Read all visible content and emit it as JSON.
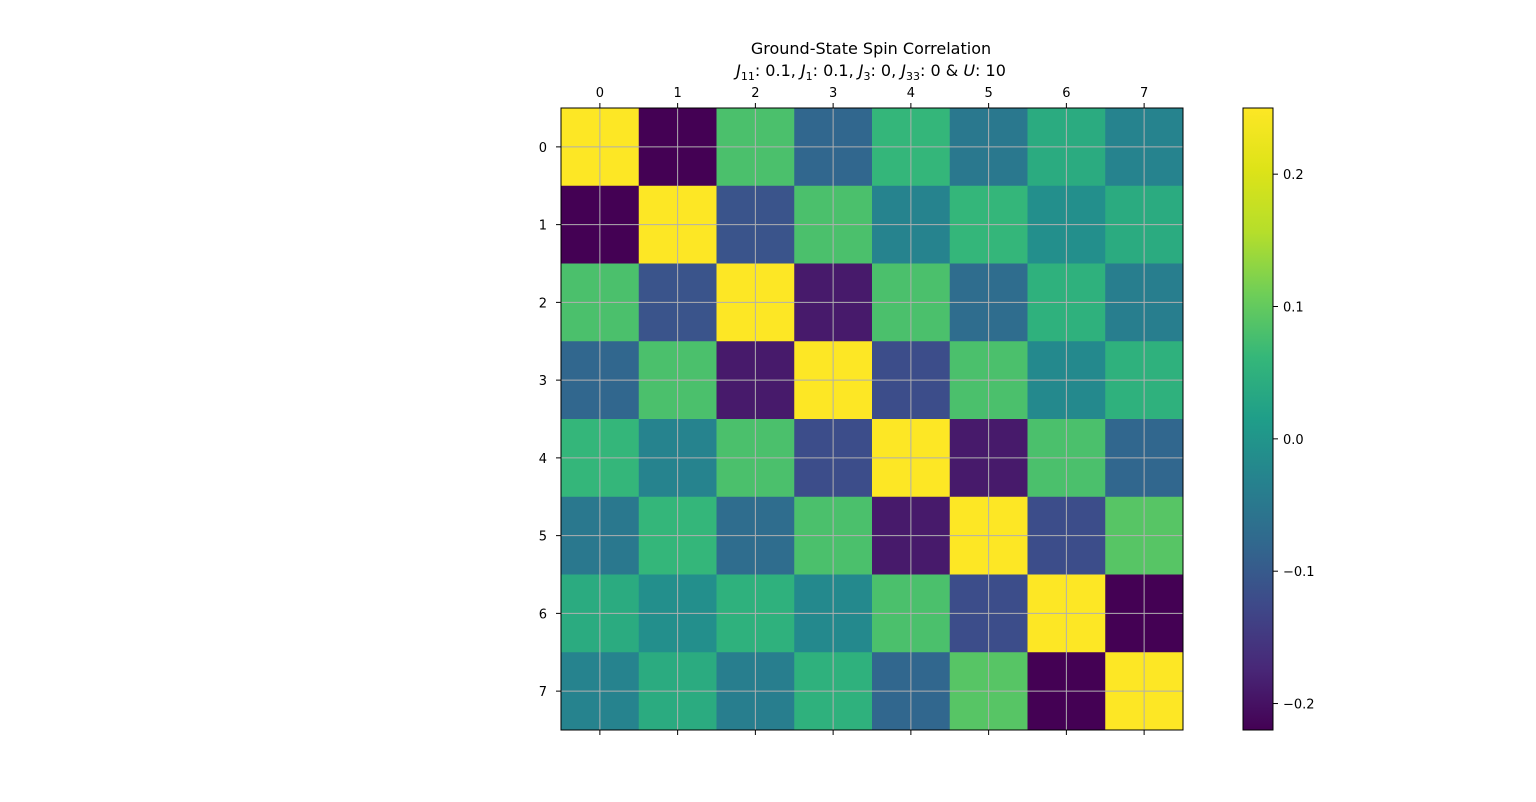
{
  "chart_data": {
    "type": "heatmap",
    "title": "Ground-State Spin Correlation",
    "subtitle": {
      "parts": [
        {
          "t": "J",
          "it": true
        },
        {
          "t": "11",
          "sub": true
        },
        {
          "t": ": 0.1, "
        },
        {
          "t": "J",
          "it": true
        },
        {
          "t": "1",
          "sub": true
        },
        {
          "t": ": 0.1, "
        },
        {
          "t": "J",
          "it": true
        },
        {
          "t": "3",
          "sub": true
        },
        {
          "t": ": 0, "
        },
        {
          "t": "J",
          "it": true
        },
        {
          "t": "33",
          "sub": true
        },
        {
          "t": ": 0 & "
        },
        {
          "t": "U",
          "it": true
        },
        {
          "t": ": 10"
        }
      ]
    },
    "x_ticks": [
      "0",
      "1",
      "2",
      "3",
      "4",
      "5",
      "6",
      "7"
    ],
    "y_ticks": [
      "0",
      "1",
      "2",
      "3",
      "4",
      "5",
      "6",
      "7"
    ],
    "x_axis_position": "top",
    "grid": true,
    "colormap": "viridis",
    "vmin": -0.22,
    "vmax": 0.25,
    "colorbar_ticks": [
      "0.2",
      "0.1",
      "0.0",
      "−0.1",
      "−0.2"
    ],
    "colorbar_tick_values": [
      0.2,
      0.1,
      0.0,
      -0.1,
      -0.2
    ],
    "matrix": [
      [
        0.25,
        -0.22,
        0.08,
        -0.08,
        0.06,
        -0.05,
        0.04,
        -0.03
      ],
      [
        -0.22,
        0.25,
        -0.11,
        0.08,
        -0.03,
        0.06,
        -0.01,
        0.04
      ],
      [
        0.08,
        -0.11,
        0.25,
        -0.19,
        0.08,
        -0.07,
        0.05,
        -0.04
      ],
      [
        -0.08,
        0.08,
        -0.19,
        0.25,
        -0.12,
        0.08,
        -0.02,
        0.05
      ],
      [
        0.06,
        -0.03,
        0.08,
        -0.12,
        0.25,
        -0.19,
        0.08,
        -0.08
      ],
      [
        -0.05,
        0.06,
        -0.07,
        0.08,
        -0.19,
        0.25,
        -0.12,
        0.09
      ],
      [
        0.04,
        -0.01,
        0.05,
        -0.02,
        0.08,
        -0.12,
        0.25,
        -0.22
      ],
      [
        -0.03,
        0.04,
        -0.04,
        0.05,
        -0.08,
        0.09,
        -0.22,
        0.25
      ]
    ]
  }
}
